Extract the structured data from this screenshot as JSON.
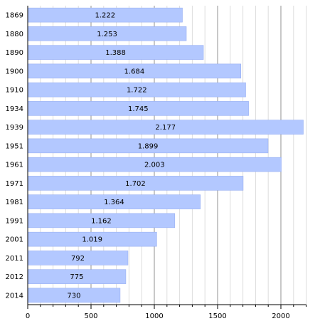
{
  "chart_data": {
    "type": "bar",
    "orientation": "horizontal",
    "title": "",
    "xlabel": "",
    "ylabel": "",
    "categories": [
      "1869",
      "1880",
      "1890",
      "1900",
      "1910",
      "1934",
      "1939",
      "1951",
      "1961",
      "1971",
      "1981",
      "1991",
      "2001",
      "2011",
      "2012",
      "2014"
    ],
    "values": [
      1222,
      1253,
      1388,
      1684,
      1722,
      1745,
      2177,
      1899,
      2003,
      1702,
      1364,
      1162,
      1019,
      792,
      775,
      730
    ],
    "value_labels": [
      "1.222",
      "1.253",
      "1.388",
      "1.684",
      "1.722",
      "1.745",
      "2.177",
      "1.899",
      "2.003",
      "1.702",
      "1.364",
      "1.162",
      "1.019",
      "792",
      "775",
      "730"
    ],
    "xlim": [
      0,
      2200
    ],
    "xticks": [
      0,
      500,
      1000,
      1500,
      2000
    ],
    "xtick_labels": [
      "0",
      "500",
      "1000",
      "1500",
      "2000"
    ],
    "minor_tick_step": 100,
    "grid": true,
    "legend": "none",
    "colors": {
      "bar_fill": "#b3c8ff",
      "bar_stroke": "#8fa8f0",
      "major_grid": "#909090",
      "minor_grid": "#dddddd",
      "axis": "#000000"
    }
  }
}
